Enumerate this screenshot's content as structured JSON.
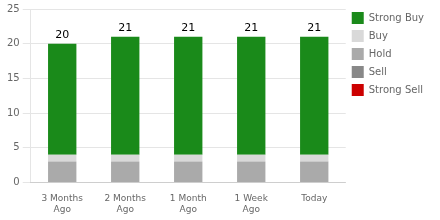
{
  "chart_data": {
    "type": "bar",
    "stacked": true,
    "categories": [
      "3 Months\nAgo",
      "2 Months\nAgo",
      "1 Month\nAgo",
      "1 Week\nAgo",
      "Today"
    ],
    "series": [
      {
        "name": "Strong Sell",
        "color": "#cc0000",
        "values": [
          0,
          0,
          0,
          0,
          0
        ]
      },
      {
        "name": "Sell",
        "color": "#888888",
        "values": [
          0,
          0,
          0,
          0,
          0
        ]
      },
      {
        "name": "Hold",
        "color": "#aaaaaa",
        "values": [
          3,
          3,
          3,
          3,
          3
        ]
      },
      {
        "name": "Buy",
        "color": "#d9d9d9",
        "values": [
          1,
          1,
          1,
          1,
          1
        ]
      },
      {
        "name": "Strong Buy",
        "color": "#1a8a1a",
        "values": [
          16,
          17,
          17,
          17,
          17
        ]
      }
    ],
    "totals": [
      20,
      21,
      21,
      21,
      21
    ],
    "ylim": [
      0,
      25
    ],
    "yticks": [
      0,
      5,
      10,
      15,
      20,
      25
    ],
    "grid": true,
    "legend": "right"
  }
}
